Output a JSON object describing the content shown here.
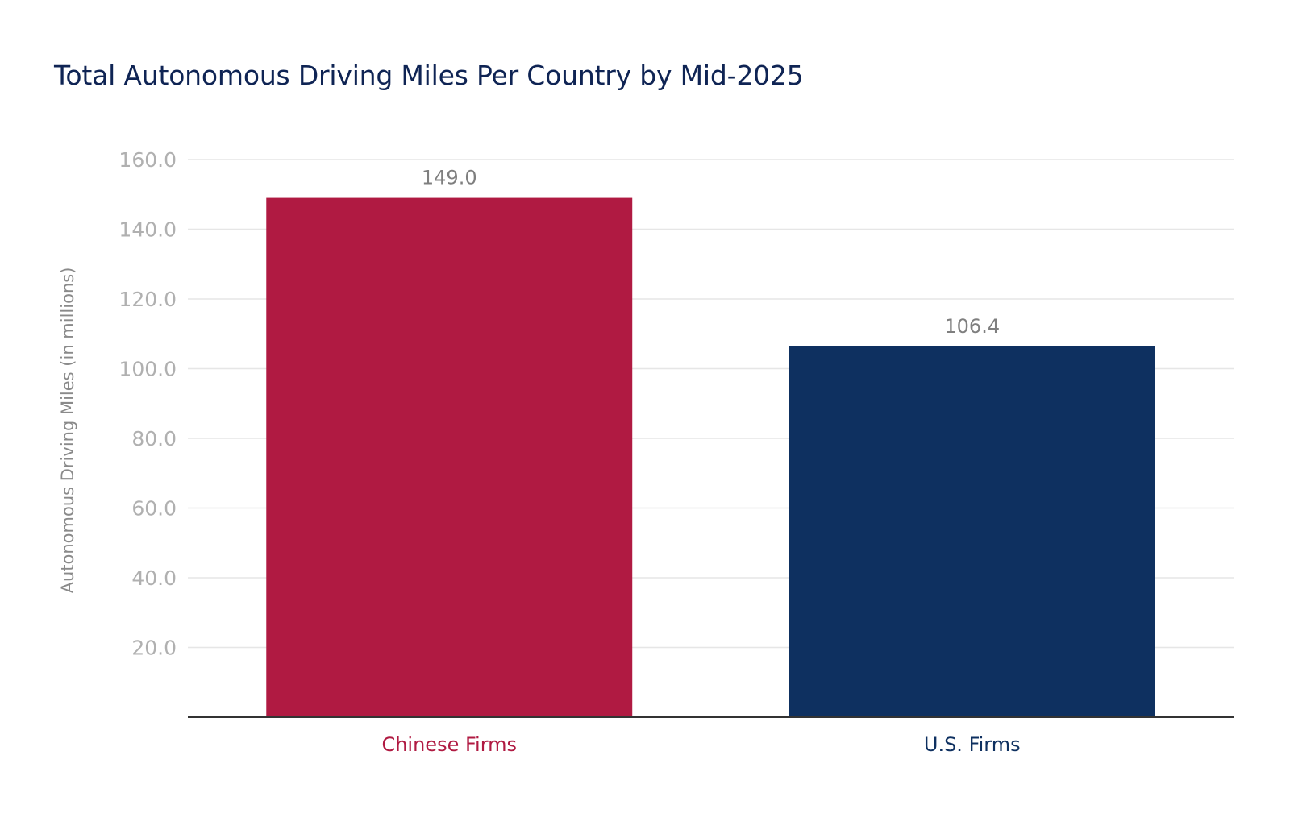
{
  "chart_data": {
    "type": "bar",
    "title": "Total Autonomous Driving Miles Per Country by Mid-2025",
    "xlabel": "",
    "ylabel": "Autonomous Driving Miles (in millions)",
    "categories": [
      "Chinese Firms",
      "U.S. Firms"
    ],
    "values": [
      149.0,
      106.4
    ],
    "value_labels": [
      "149.0",
      "106.4"
    ],
    "colors": [
      "#b01a42",
      "#0e3060"
    ],
    "category_label_colors": [
      "#b01a42",
      "#0e3060"
    ],
    "ylim": [
      0,
      160
    ],
    "yticks": [
      20,
      40,
      60,
      80,
      100,
      120,
      140,
      160
    ],
    "ytick_labels": [
      "20.0",
      "40.0",
      "60.0",
      "80.0",
      "100.0",
      "120.0",
      "140.0",
      "160.0"
    ],
    "grid": true,
    "legend": "none"
  }
}
